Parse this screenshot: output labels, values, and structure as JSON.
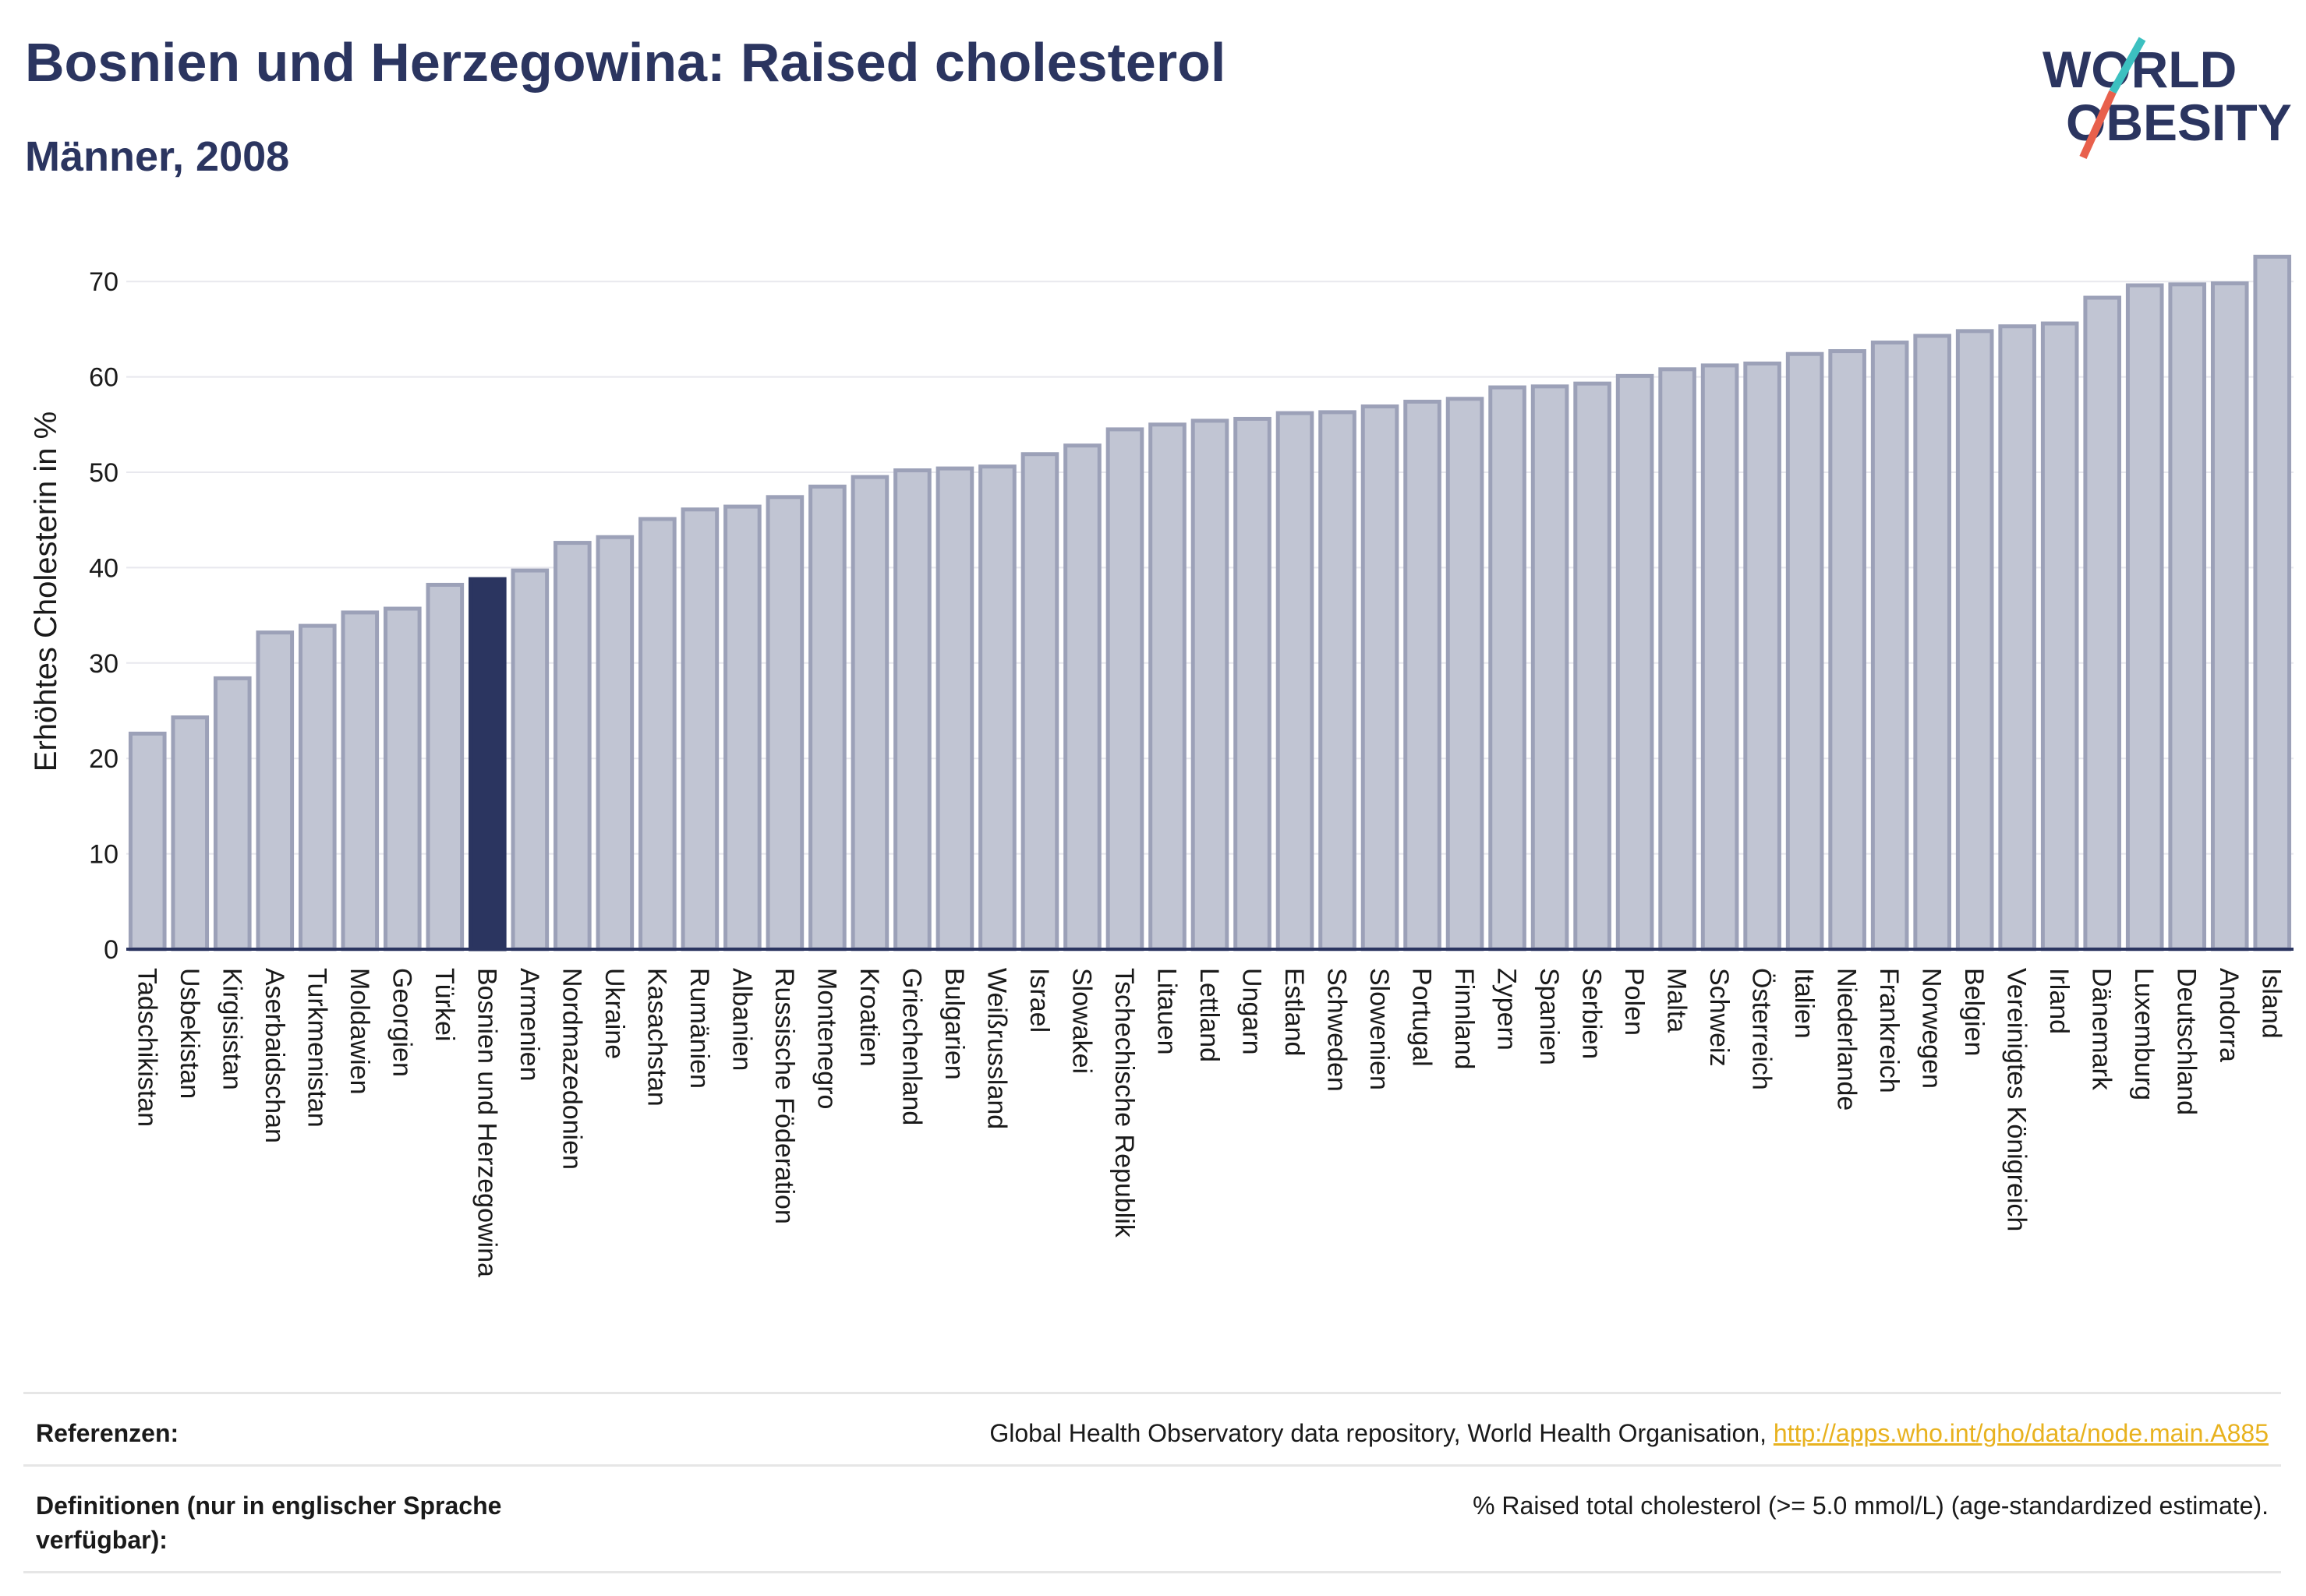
{
  "header": {
    "title": "Bosnien und Herzegowina: Raised cholesterol",
    "subtitle": "Männer, 2008"
  },
  "logo": {
    "line1": "WORLD",
    "line2": "OBESITY",
    "colors": {
      "text": "#2b3560",
      "slash_teal": "#3cc0c0",
      "slash_red": "#e8604c"
    }
  },
  "colors": {
    "bar_default": "#c1c5d3",
    "bar_default_stroke": "#9ca1b8",
    "bar_highlight": "#2b3560",
    "axis": "#2b3560",
    "grid": "#e8e8ee"
  },
  "chart_data": {
    "type": "bar",
    "title": "Bosnien und Herzegowina: Raised cholesterol",
    "subtitle": "Männer, 2008",
    "xlabel": "",
    "ylabel": "Erhöhtes Cholesterin in %",
    "ylim": [
      0,
      75
    ],
    "yticks": [
      0,
      10,
      20,
      30,
      40,
      50,
      60,
      70
    ],
    "grid": true,
    "highlight": "Bosnien und Herzegowina",
    "categories": [
      "Tadschikistan",
      "Usbekistan",
      "Kirgisistan",
      "Aserbaidschan",
      "Turkmenistan",
      "Moldawien",
      "Georgien",
      "Türkei",
      "Bosnien und Herzegowina",
      "Armenien",
      "Nordmazedonien",
      "Ukraine",
      "Kasachstan",
      "Rumänien",
      "Albanien",
      "Russische Föderation",
      "Montenegro",
      "Kroatien",
      "Griechenland",
      "Bulgarien",
      "Weißrussland",
      "Israel",
      "Slowakei",
      "Tschechische Republik",
      "Litauen",
      "Lettland",
      "Ungarn",
      "Estland",
      "Schweden",
      "Slowenien",
      "Portugal",
      "Finnland",
      "Zypern",
      "Spanien",
      "Serbien",
      "Polen",
      "Malta",
      "Schweiz",
      "Österreich",
      "Italien",
      "Niederlande",
      "Frankreich",
      "Norwegen",
      "Belgien",
      "Vereinigtes Königreich",
      "Irland",
      "Dänemark",
      "Luxemburg",
      "Deutschland",
      "Andorra",
      "Island"
    ],
    "values": [
      22.6,
      24.3,
      28.4,
      33.2,
      33.9,
      35.3,
      35.7,
      38.2,
      38.8,
      39.7,
      42.6,
      43.2,
      45.1,
      46.1,
      46.4,
      47.4,
      48.5,
      49.5,
      50.2,
      50.4,
      50.6,
      51.9,
      52.8,
      54.5,
      55.0,
      55.4,
      55.6,
      56.2,
      56.3,
      56.9,
      57.4,
      57.7,
      58.9,
      59.0,
      59.3,
      60.1,
      60.8,
      61.2,
      61.4,
      62.4,
      62.7,
      63.6,
      64.3,
      64.8,
      65.3,
      65.6,
      68.3,
      69.6,
      69.7,
      69.8,
      72.6
    ]
  },
  "footer": {
    "references_label": "Referenzen:",
    "references_text": "Global Health Observatory data repository, World Health Organisation, ",
    "references_link": "http://apps.who.int/gho/data/node.main.A885",
    "definitions_label": "Definitionen (nur in englischer Sprache verfügbar):",
    "definitions_text": "% Raised total cholesterol (>= 5.0 mmol/L) (age-standardized estimate)."
  }
}
